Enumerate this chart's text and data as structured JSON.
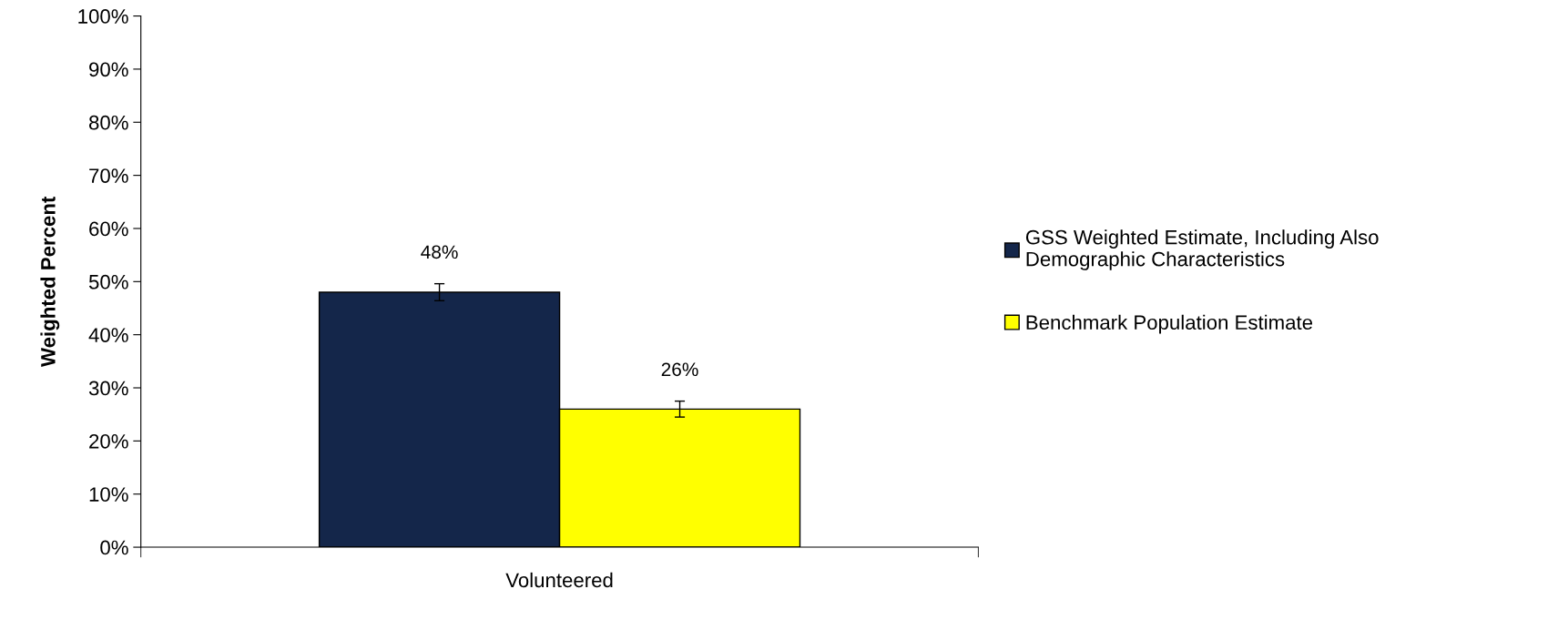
{
  "chart_data": {
    "type": "bar",
    "ylabel": "Weighted Percent",
    "categories": [
      "Volunteered"
    ],
    "series": [
      {
        "name": "GSS Weighted Estimate, Including Also\nDemographic Characteristics",
        "color": "#14264a",
        "values": [
          48
        ],
        "errors": [
          1.6
        ],
        "value_labels": [
          "48%"
        ]
      },
      {
        "name": "Benchmark Population Estimate",
        "color": "#ffff00",
        "values": [
          26
        ],
        "errors": [
          1.5
        ],
        "value_labels": [
          "26%"
        ]
      }
    ],
    "ylim": [
      0,
      100
    ],
    "yticks": [
      {
        "value": 0,
        "label": "0%"
      },
      {
        "value": 10,
        "label": "10%"
      },
      {
        "value": 20,
        "label": "20%"
      },
      {
        "value": 30,
        "label": "30%"
      },
      {
        "value": 40,
        "label": "40%"
      },
      {
        "value": 50,
        "label": "50%"
      },
      {
        "value": 60,
        "label": "60%"
      },
      {
        "value": 70,
        "label": "70%"
      },
      {
        "value": 80,
        "label": "80%"
      },
      {
        "value": 90,
        "label": "90%"
      },
      {
        "value": 100,
        "label": "100%"
      }
    ],
    "grid": false,
    "legend": "right"
  }
}
